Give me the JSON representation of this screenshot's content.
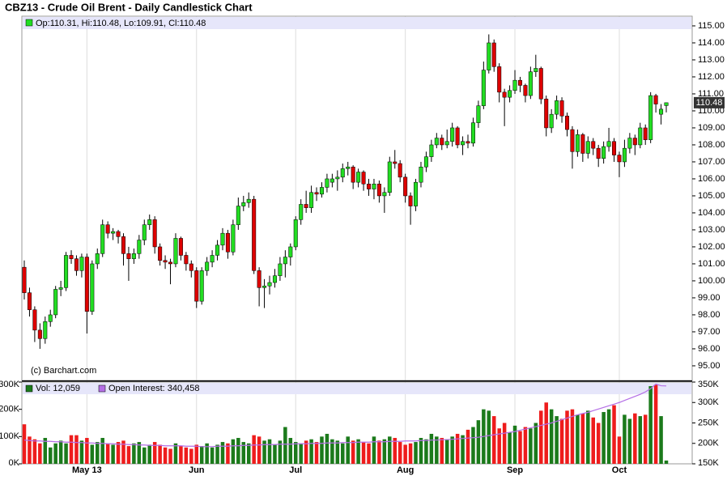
{
  "chart_data": {
    "type": "candlestick",
    "title": "CBZ13 - Crude Oil Brent - Daily Candlestick Chart",
    "ohlc_legend": "Op:110.31, Hi:110.48, Lo:109.91, Cl:110.48",
    "credit": "(c) Barchart.com",
    "grid": "x",
    "up_color": "#22dd22",
    "down_color": "#dd0000",
    "last_price_color": "#333333",
    "categories": [
      null,
      null,
      null,
      null,
      null,
      null,
      null,
      null,
      null,
      null,
      null,
      null,
      "May 13",
      null,
      null,
      null,
      null,
      null,
      null,
      null,
      null,
      null,
      null,
      null,
      null,
      null,
      null,
      null,
      null,
      null,
      null,
      null,
      null,
      "Jun",
      null,
      null,
      null,
      null,
      null,
      null,
      null,
      null,
      null,
      null,
      null,
      null,
      null,
      null,
      null,
      null,
      null,
      null,
      "Jul",
      null,
      null,
      null,
      null,
      null,
      null,
      null,
      null,
      null,
      null,
      null,
      null,
      null,
      null,
      null,
      null,
      null,
      null,
      null,
      null,
      "Aug",
      null,
      null,
      null,
      null,
      null,
      null,
      null,
      null,
      null,
      null,
      null,
      null,
      null,
      null,
      null,
      null,
      null,
      null,
      null,
      null,
      "Sep",
      null,
      null,
      null,
      null,
      null,
      null,
      null,
      null,
      null,
      null,
      null,
      null,
      null,
      null,
      null,
      null,
      null,
      null,
      null,
      "Oct",
      null,
      null,
      null,
      null,
      null,
      null,
      null,
      null,
      null
    ],
    "ohlc": [
      [
        100.8,
        101.2,
        98.9,
        99.3
      ],
      [
        99.3,
        99.6,
        97.9,
        98.3
      ],
      [
        98.3,
        98.5,
        96.4,
        97.1
      ],
      [
        97.1,
        97.5,
        96.0,
        96.6
      ],
      [
        96.6,
        97.9,
        96.3,
        97.6
      ],
      [
        97.6,
        98.3,
        97.3,
        98.0
      ],
      [
        98.0,
        99.7,
        97.8,
        99.5
      ],
      [
        99.5,
        100.0,
        99.1,
        99.6
      ],
      [
        99.6,
        101.7,
        99.4,
        101.5
      ],
      [
        101.5,
        101.8,
        101.0,
        101.3
      ],
      [
        101.3,
        101.5,
        100.3,
        100.6
      ],
      [
        100.6,
        101.6,
        100.2,
        101.4
      ],
      [
        101.4,
        101.6,
        96.9,
        98.2
      ],
      [
        98.2,
        101.2,
        98.0,
        101.0
      ],
      [
        101.0,
        101.9,
        100.7,
        101.6
      ],
      [
        101.6,
        103.6,
        101.4,
        103.3
      ],
      [
        103.3,
        103.5,
        102.5,
        102.8
      ],
      [
        102.8,
        103.1,
        102.4,
        102.9
      ],
      [
        102.9,
        103.0,
        102.2,
        102.6
      ],
      [
        102.6,
        102.8,
        100.9,
        101.6
      ],
      [
        101.6,
        102.0,
        100.0,
        101.3
      ],
      [
        101.3,
        101.9,
        101.0,
        101.6
      ],
      [
        101.6,
        102.7,
        101.3,
        102.4
      ],
      [
        102.4,
        103.6,
        102.1,
        103.3
      ],
      [
        103.3,
        103.9,
        103.0,
        103.6
      ],
      [
        103.6,
        103.8,
        101.6,
        102.0
      ],
      [
        102.0,
        102.2,
        100.9,
        101.2
      ],
      [
        101.2,
        101.5,
        100.7,
        101.1
      ],
      [
        101.1,
        101.3,
        99.8,
        101.0
      ],
      [
        101.0,
        102.8,
        100.8,
        102.5
      ],
      [
        102.5,
        102.6,
        101.2,
        101.5
      ],
      [
        101.5,
        101.7,
        100.6,
        101.0
      ],
      [
        101.0,
        101.2,
        100.2,
        100.6
      ],
      [
        100.6,
        100.8,
        98.4,
        98.8
      ],
      [
        98.8,
        100.8,
        98.6,
        100.6
      ],
      [
        100.6,
        101.4,
        100.3,
        101.1
      ],
      [
        101.1,
        101.8,
        100.8,
        101.5
      ],
      [
        101.5,
        102.4,
        101.2,
        102.1
      ],
      [
        102.1,
        103.1,
        101.8,
        102.8
      ],
      [
        102.8,
        103.0,
        101.3,
        101.7
      ],
      [
        101.7,
        103.6,
        101.5,
        103.3
      ],
      [
        103.3,
        104.9,
        103.0,
        104.4
      ],
      [
        104.4,
        105.0,
        104.1,
        104.6
      ],
      [
        104.6,
        105.2,
        104.3,
        104.8
      ],
      [
        104.8,
        105.0,
        100.4,
        100.6
      ],
      [
        100.6,
        100.8,
        98.5,
        99.6
      ],
      [
        99.6,
        100.1,
        98.4,
        99.7
      ],
      [
        99.7,
        100.3,
        99.2,
        99.9
      ],
      [
        99.9,
        100.7,
        99.6,
        100.3
      ],
      [
        100.3,
        101.4,
        100.0,
        101.0
      ],
      [
        101.0,
        101.8,
        100.2,
        101.4
      ],
      [
        101.4,
        102.2,
        100.9,
        102.0
      ],
      [
        102.0,
        103.8,
        101.8,
        103.6
      ],
      [
        103.6,
        104.8,
        103.3,
        104.5
      ],
      [
        104.5,
        105.3,
        104.0,
        104.3
      ],
      [
        104.3,
        105.6,
        104.0,
        105.2
      ],
      [
        105.2,
        105.5,
        104.7,
        105.1
      ],
      [
        105.1,
        105.8,
        104.9,
        105.5
      ],
      [
        105.5,
        106.3,
        105.2,
        106.0
      ],
      [
        105.8,
        106.3,
        105.5,
        106.0
      ],
      [
        106.0,
        106.5,
        105.3,
        106.1
      ],
      [
        106.1,
        106.9,
        105.8,
        106.6
      ],
      [
        106.6,
        107.0,
        106.2,
        106.7
      ],
      [
        106.7,
        106.8,
        105.4,
        105.8
      ],
      [
        105.8,
        106.6,
        105.5,
        106.4
      ],
      [
        106.4,
        106.5,
        105.3,
        105.7
      ],
      [
        105.7,
        106.0,
        105.0,
        105.4
      ],
      [
        105.4,
        106.0,
        104.8,
        105.7
      ],
      [
        105.7,
        105.9,
        104.6,
        105.0
      ],
      [
        105.0,
        105.5,
        104.0,
        105.2
      ],
      [
        105.2,
        107.3,
        105.0,
        107.0
      ],
      [
        107.0,
        107.7,
        106.6,
        106.9
      ],
      [
        106.9,
        107.1,
        105.8,
        106.1
      ],
      [
        106.1,
        106.3,
        104.6,
        105.0
      ],
      [
        105.0,
        105.2,
        103.3,
        104.4
      ],
      [
        104.4,
        106.0,
        104.1,
        105.8
      ],
      [
        105.8,
        107.0,
        105.5,
        106.7
      ],
      [
        106.7,
        107.6,
        106.4,
        107.3
      ],
      [
        107.3,
        108.3,
        107.0,
        108.0
      ],
      [
        108.0,
        108.7,
        107.8,
        108.4
      ],
      [
        108.4,
        108.6,
        107.7,
        108.0
      ],
      [
        108.0,
        108.9,
        107.8,
        108.2
      ],
      [
        108.2,
        109.3,
        107.9,
        109.0
      ],
      [
        109.0,
        109.1,
        107.8,
        108.0
      ],
      [
        108.0,
        108.5,
        107.4,
        108.2
      ],
      [
        108.2,
        108.6,
        107.8,
        108.1
      ],
      [
        108.1,
        109.6,
        107.9,
        109.3
      ],
      [
        109.3,
        110.6,
        109.0,
        110.3
      ],
      [
        110.3,
        112.9,
        110.1,
        112.4
      ],
      [
        112.4,
        114.5,
        112.2,
        114.0
      ],
      [
        114.0,
        114.2,
        112.3,
        112.6
      ],
      [
        112.6,
        112.8,
        110.5,
        111.1
      ],
      [
        111.1,
        111.3,
        109.1,
        110.8
      ],
      [
        110.8,
        111.5,
        110.5,
        111.2
      ],
      [
        111.2,
        112.4,
        111.0,
        111.8
      ],
      [
        111.8,
        112.0,
        111.1,
        111.5
      ],
      [
        111.5,
        111.6,
        110.5,
        110.9
      ],
      [
        110.9,
        112.6,
        110.7,
        112.3
      ],
      [
        112.3,
        113.3,
        112.0,
        112.5
      ],
      [
        112.5,
        112.6,
        110.4,
        110.7
      ],
      [
        110.7,
        110.9,
        108.5,
        109.0
      ],
      [
        109.0,
        110.1,
        108.7,
        109.8
      ],
      [
        109.8,
        110.9,
        109.5,
        110.6
      ],
      [
        110.6,
        110.8,
        109.3,
        109.7
      ],
      [
        109.7,
        109.9,
        108.5,
        108.9
      ],
      [
        108.9,
        109.1,
        106.6,
        107.6
      ],
      [
        107.6,
        108.9,
        107.3,
        108.6
      ],
      [
        108.6,
        108.7,
        107.0,
        107.5
      ],
      [
        107.5,
        108.5,
        107.2,
        108.2
      ],
      [
        108.2,
        108.4,
        107.4,
        107.8
      ],
      [
        107.8,
        108.0,
        106.7,
        107.2
      ],
      [
        107.2,
        108.2,
        106.9,
        107.9
      ],
      [
        107.9,
        109.0,
        107.6,
        108.2
      ],
      [
        108.2,
        108.4,
        107.0,
        107.4
      ],
      [
        107.4,
        107.6,
        106.1,
        107.0
      ],
      [
        107.0,
        108.3,
        106.7,
        107.8
      ],
      [
        107.8,
        108.7,
        107.5,
        108.4
      ],
      [
        108.4,
        108.6,
        107.4,
        108.0
      ],
      [
        108.0,
        109.3,
        107.8,
        109.0
      ],
      [
        109.0,
        109.2,
        108.0,
        108.3
      ],
      [
        108.3,
        111.1,
        108.1,
        110.9
      ],
      [
        110.9,
        111.0,
        109.9,
        110.4
      ],
      [
        109.8,
        110.4,
        109.2,
        110.1
      ],
      [
        110.31,
        110.48,
        109.91,
        110.48
      ]
    ],
    "ylim": [
      94.14,
      115.57
    ],
    "yticks": [
      {
        "value": 95,
        "label": "95.00"
      },
      {
        "value": 96,
        "label": "96.00"
      },
      {
        "value": 97,
        "label": "97.00"
      },
      {
        "value": 98,
        "label": "98.00"
      },
      {
        "value": 99,
        "label": "99.00"
      },
      {
        "value": 100,
        "label": "100.00"
      },
      {
        "value": 101,
        "label": "101.00"
      },
      {
        "value": 102,
        "label": "102.00"
      },
      {
        "value": 103,
        "label": "103.00"
      },
      {
        "value": 104,
        "label": "104.00"
      },
      {
        "value": 105,
        "label": "105.00"
      },
      {
        "value": 106,
        "label": "106.00"
      },
      {
        "value": 107,
        "label": "107.00"
      },
      {
        "value": 108,
        "label": "108.00"
      },
      {
        "value": 109,
        "label": "109.00"
      },
      {
        "value": 110,
        "label": "110.00"
      },
      {
        "value": 111,
        "label": "111.00"
      },
      {
        "value": 112,
        "label": "112.00"
      },
      {
        "value": 113,
        "label": "113.00"
      },
      {
        "value": 114,
        "label": "114.00"
      },
      {
        "value": 115,
        "label": "115.00"
      }
    ],
    "volume_panel": {
      "volume_legend": "Vol: 12,059",
      "oi_legend": "Open Interest: 340,458",
      "volume_up_color": "#1b7a1b",
      "volume_down_color": "#ee1c1c",
      "oi_color": "#b46ee6",
      "volume": [
        145,
        100,
        90,
        75,
        95,
        60,
        75,
        85,
        75,
        105,
        105,
        85,
        95,
        70,
        80,
        95,
        75,
        70,
        80,
        85,
        65,
        75,
        80,
        60,
        70,
        80,
        70,
        60,
        55,
        75,
        65,
        60,
        55,
        70,
        65,
        75,
        60,
        70,
        80,
        75,
        90,
        95,
        80,
        75,
        105,
        100,
        85,
        90,
        70,
        85,
        135,
        95,
        80,
        75,
        85,
        90,
        80,
        100,
        110,
        90,
        85,
        75,
        100,
        85,
        90,
        80,
        75,
        100,
        85,
        90,
        100,
        95,
        80,
        70,
        75,
        80,
        95,
        90,
        110,
        100,
        95,
        90,
        100,
        110,
        105,
        125,
        135,
        160,
        200,
        195,
        175,
        130,
        150,
        115,
        140,
        120,
        135,
        130,
        150,
        195,
        225,
        200,
        175,
        165,
        195,
        200,
        180,
        185,
        195,
        170,
        150,
        190,
        200,
        215,
        100,
        180,
        165,
        185,
        175,
        180,
        285,
        290,
        175,
        12.059
      ],
      "open_interest": [
        208,
        207,
        206,
        206,
        205,
        205,
        204,
        204,
        203,
        203,
        202,
        202,
        201,
        201,
        200,
        200,
        199,
        199,
        198,
        198,
        197,
        197,
        196,
        196,
        195,
        195,
        195,
        194,
        194,
        194,
        194,
        193,
        193,
        193,
        192,
        192,
        192,
        193,
        193,
        193,
        194,
        194,
        195,
        195,
        196,
        196,
        197,
        197,
        197,
        198,
        198,
        198,
        199,
        199,
        199,
        200,
        200,
        200,
        201,
        201,
        201,
        202,
        202,
        202,
        203,
        203,
        203,
        204,
        204,
        204,
        205,
        205,
        205,
        206,
        206,
        206,
        207,
        207,
        208,
        208,
        209,
        209,
        210,
        211,
        212,
        213,
        214,
        215,
        217,
        219,
        221,
        223,
        225,
        227,
        229,
        232,
        235,
        238,
        241,
        244,
        247,
        250,
        254,
        258,
        262,
        266,
        270,
        273,
        276,
        280,
        284,
        288,
        292,
        296,
        300,
        305,
        310,
        315,
        320,
        326,
        334,
        345,
        341,
        340.458
      ],
      "ylim": [
        0,
        300
      ],
      "yticks": [
        {
          "value": 0,
          "label": "0K"
        },
        {
          "value": 100,
          "label": "100K"
        },
        {
          "value": 200,
          "label": "200K"
        },
        {
          "value": 300,
          "label": "300K"
        }
      ],
      "y2lim": [
        150,
        350
      ],
      "y2ticks": [
        {
          "value": 150,
          "label": "150K"
        },
        {
          "value": 200,
          "label": "200K"
        },
        {
          "value": 250,
          "label": "250K"
        },
        {
          "value": 300,
          "label": "300K"
        },
        {
          "value": 350,
          "label": "350K"
        }
      ]
    }
  }
}
